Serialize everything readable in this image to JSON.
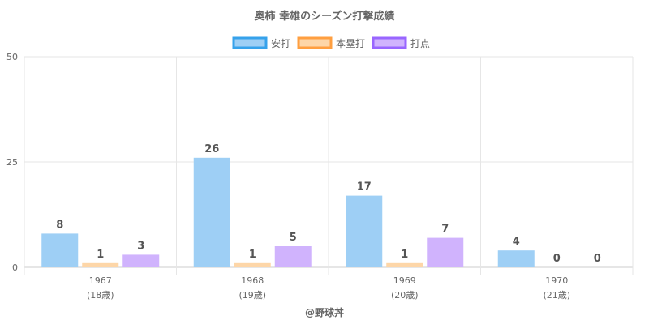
{
  "chart_data": {
    "type": "bar",
    "title": "奥柿 幸雄のシーズン打撃成績",
    "categories": [
      "1967",
      "1968",
      "1969",
      "1970"
    ],
    "category_sublabels": [
      "(18歳)",
      "(19歳)",
      "(20歳)",
      "(21歳)"
    ],
    "xlabel": "@野球丼",
    "ylabel": "",
    "ylim": [
      0,
      50
    ],
    "yticks": [
      0,
      25,
      50
    ],
    "grid": true,
    "legend_position": "top-center",
    "series": [
      {
        "name": "安打",
        "values": [
          8,
          26,
          17,
          4
        ],
        "fill": "#9ecff5",
        "stroke": "#36a2eb"
      },
      {
        "name": "本塁打",
        "values": [
          1,
          1,
          1,
          0
        ],
        "fill": "#fdd6a8",
        "stroke": "#ff9f40"
      },
      {
        "name": "打点",
        "values": [
          3,
          5,
          7,
          0
        ],
        "fill": "#d0b3fd",
        "stroke": "#9966ff"
      }
    ]
  }
}
